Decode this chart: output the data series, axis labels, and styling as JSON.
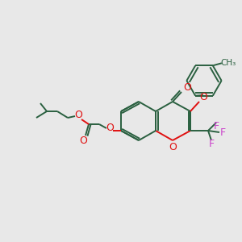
{
  "bg_color": "#e8e8e8",
  "bond_color": "#2a6040",
  "o_color": "#e01010",
  "f_color": "#cc44cc",
  "lw": 1.4,
  "figsize": [
    3.0,
    3.0
  ],
  "dpi": 100,
  "xlim": [
    0,
    300
  ],
  "ylim": [
    0,
    300
  ]
}
